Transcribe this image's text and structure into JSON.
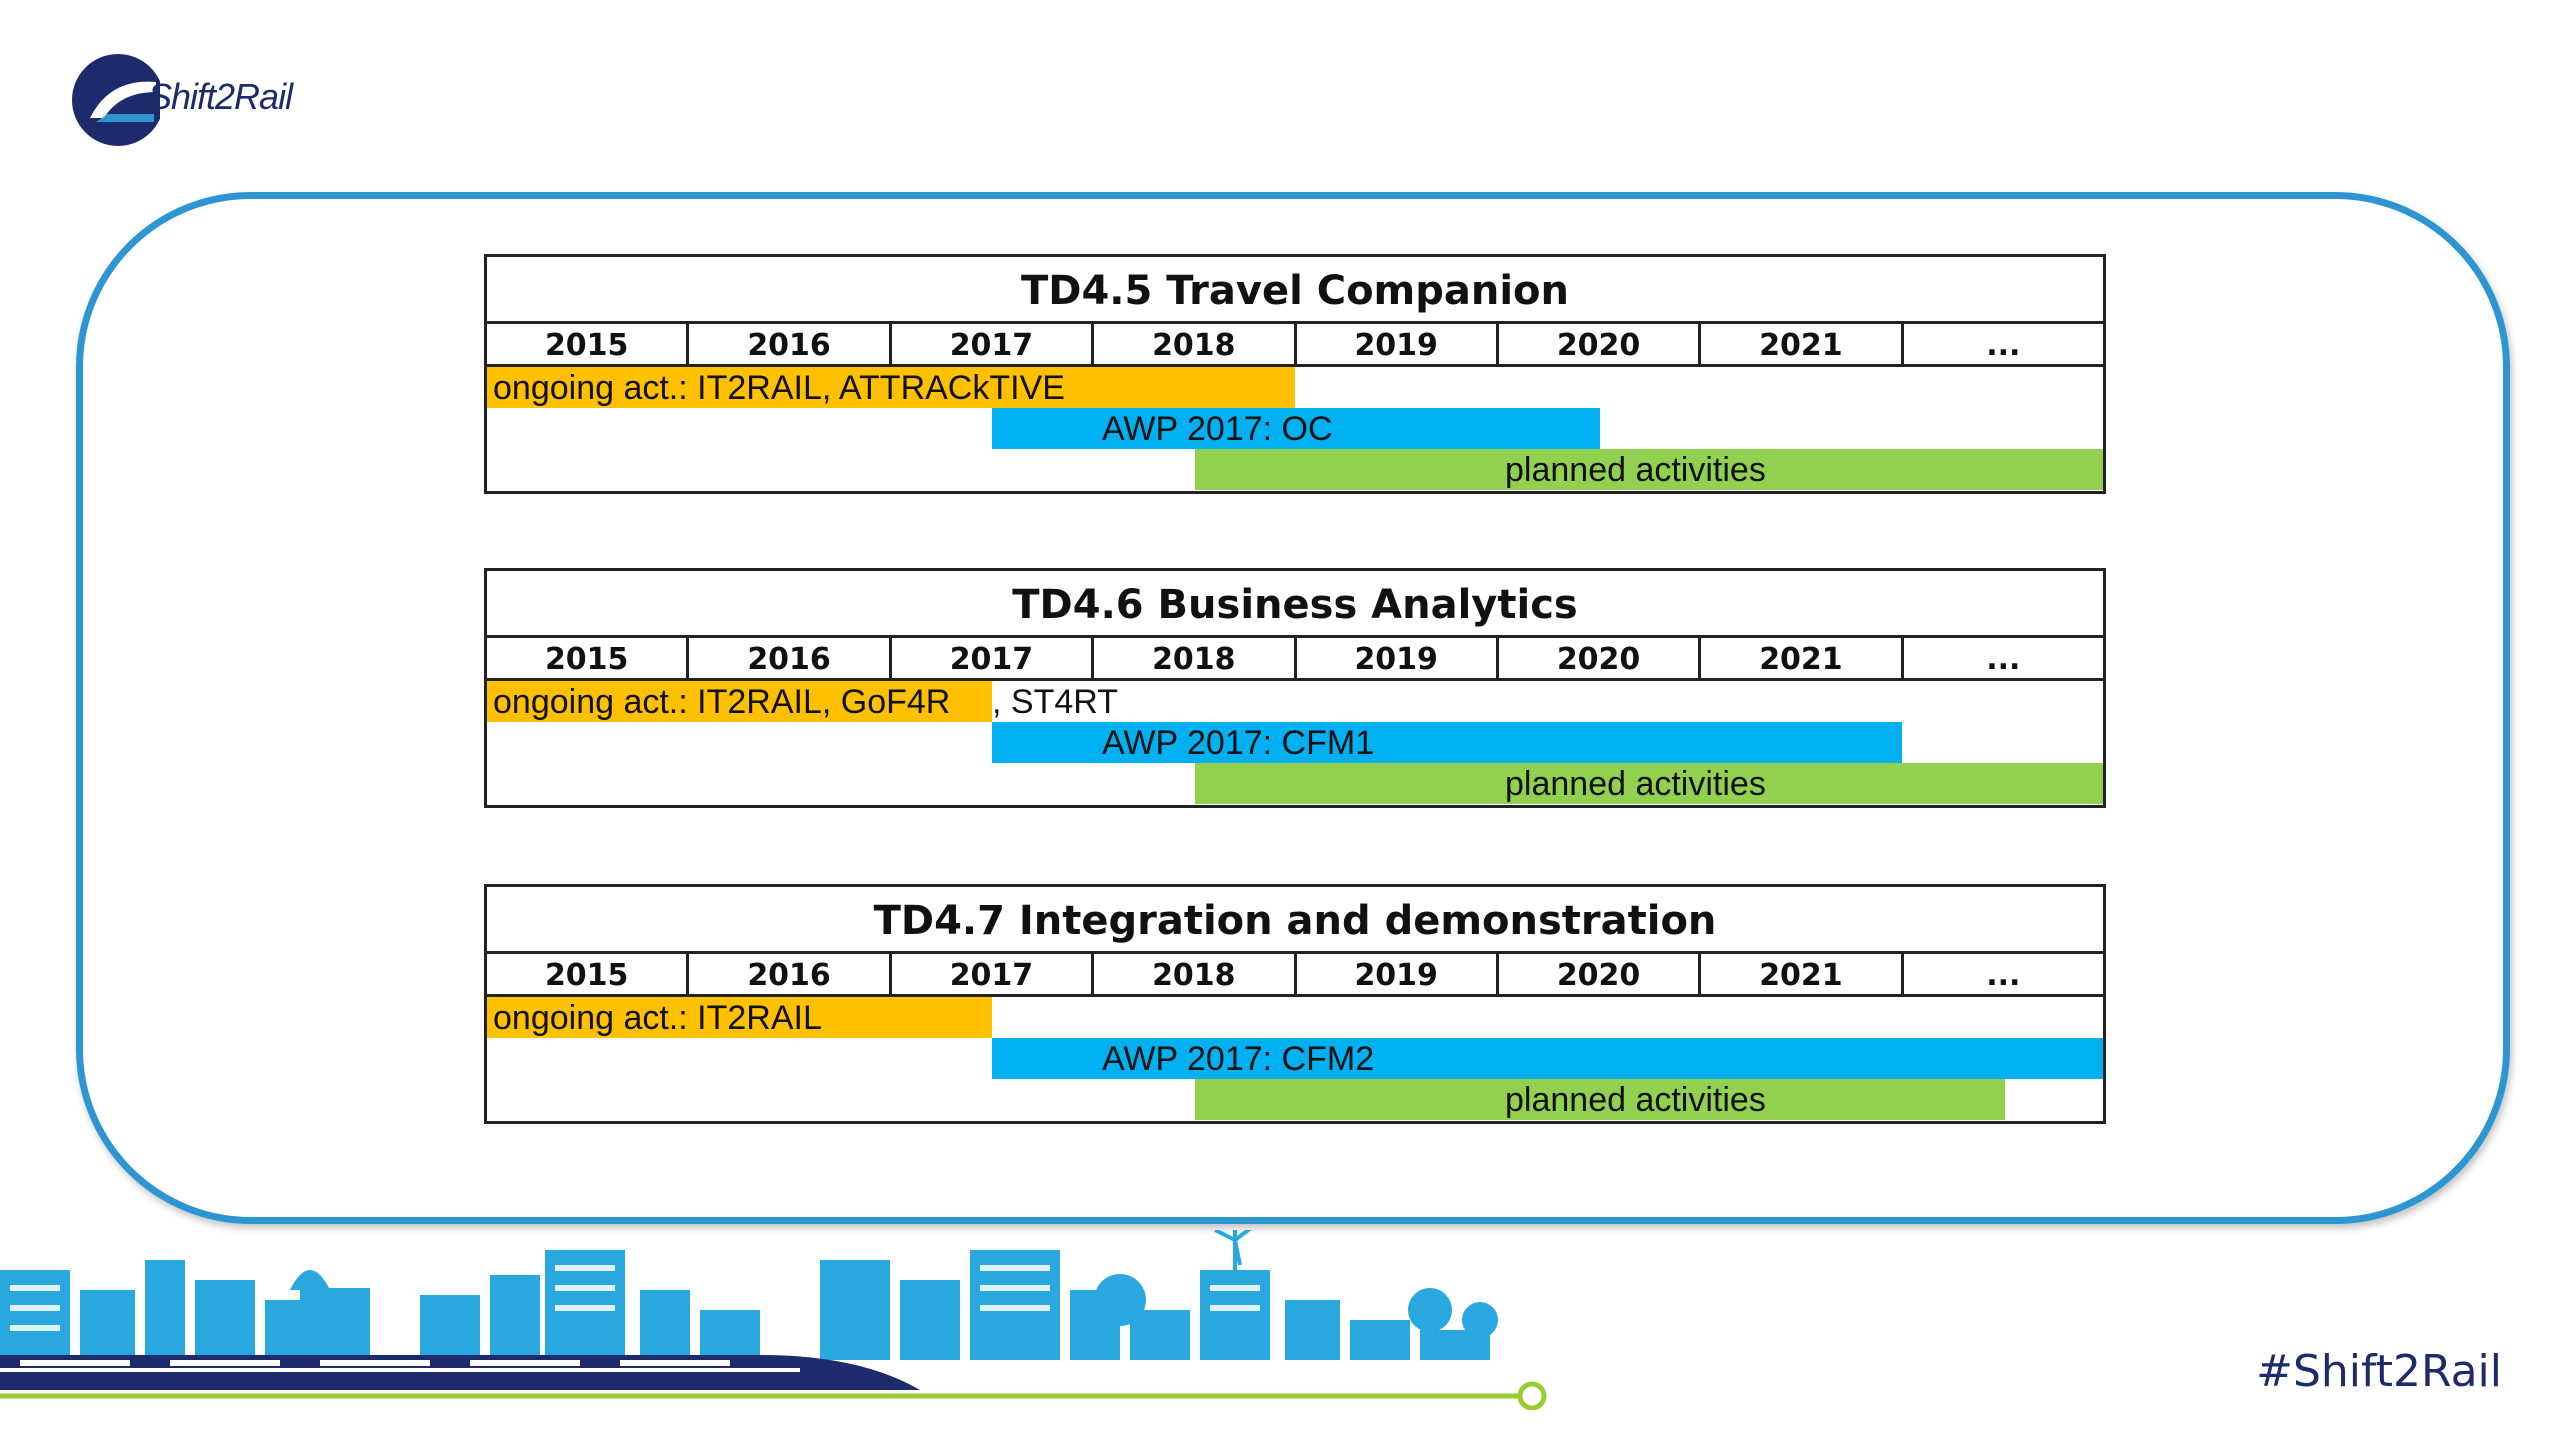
{
  "logo": {
    "text": "Shift2Rail"
  },
  "footer": {
    "hashtag": "#Shift2Rail"
  },
  "colors": {
    "ongoing": "#ffc000",
    "awp": "#00b0f0",
    "planned": "#92d050",
    "frame": "#2d96d2",
    "brand": "#1d2a6b"
  },
  "timelines": [
    {
      "title": "TD4.5 Travel Companion",
      "years": [
        "2015",
        "2016",
        "2017",
        "2018",
        "2019",
        "2020",
        "2021",
        "..."
      ],
      "ongoing": {
        "label": "ongoing act.: IT2RAIL, ATTRACkTIVE",
        "extra": ""
      },
      "awp": {
        "label": "AWP 2017: OC"
      },
      "planned": {
        "label": "planned activities"
      }
    },
    {
      "title": "TD4.6 Business Analytics",
      "years": [
        "2015",
        "2016",
        "2017",
        "2018",
        "2019",
        "2020",
        "2021",
        "..."
      ],
      "ongoing": {
        "label": "ongoing act.: IT2RAIL, GoF4R",
        "extra": ", ST4RT"
      },
      "awp": {
        "label": "AWP 2017: CFM1"
      },
      "planned": {
        "label": "planned activities"
      }
    },
    {
      "title": "TD4.7 Integration and demonstration",
      "years": [
        "2015",
        "2016",
        "2017",
        "2018",
        "2019",
        "2020",
        "2021",
        "..."
      ],
      "ongoing": {
        "label": "ongoing act.: IT2RAIL",
        "extra": ""
      },
      "awp": {
        "label": "AWP 2017: CFM2"
      },
      "planned": {
        "label": "planned activities"
      }
    }
  ]
}
